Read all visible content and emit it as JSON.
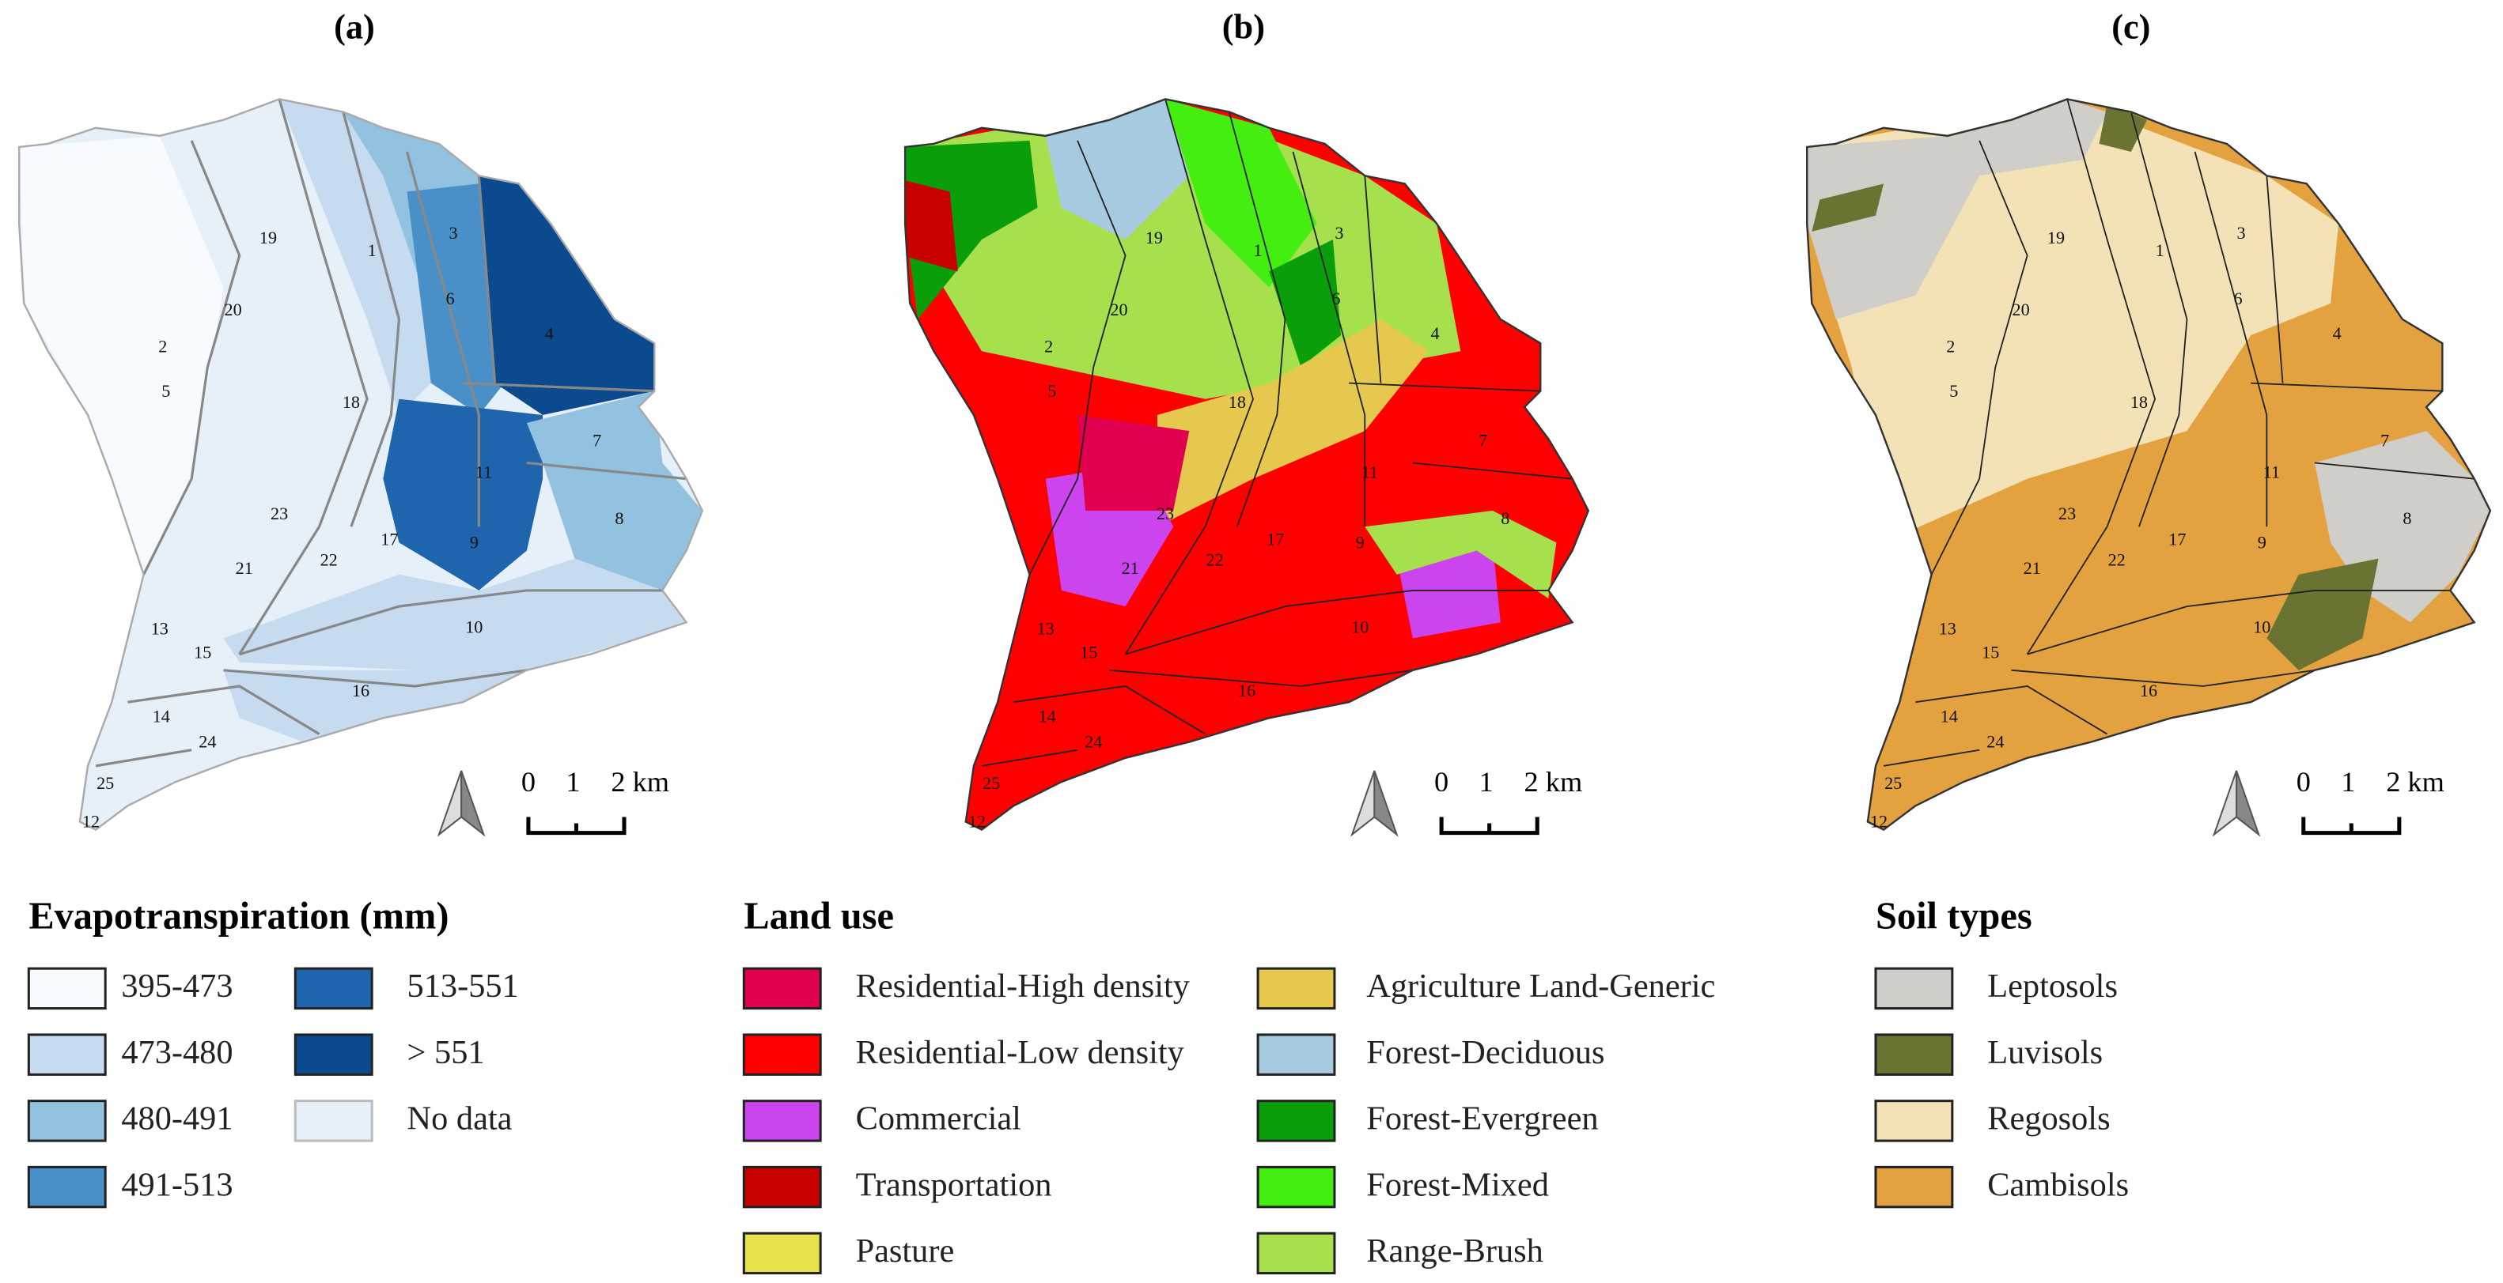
{
  "panels": [
    {
      "title": "(a)",
      "subbasin_labels": [
        "19",
        "1",
        "3",
        "6",
        "20",
        "2",
        "4",
        "5",
        "18",
        "7",
        "11",
        "23",
        "8",
        "9",
        "17",
        "22",
        "21",
        "13",
        "10",
        "15",
        "16",
        "14",
        "24",
        "25",
        "12"
      ],
      "scale_labels": [
        "0",
        "1",
        "2 km"
      ],
      "legend": {
        "title": "Evapotranspiration (mm)",
        "items": [
          {
            "label": "395-473",
            "color": "#f7fbff"
          },
          {
            "label": "473-480",
            "color": "#c6dbef"
          },
          {
            "label": "480-491",
            "color": "#92c2e0"
          },
          {
            "label": "491-513",
            "color": "#4a90c8"
          },
          {
            "label": "513-551",
            "color": "#1f65ad"
          },
          {
            "label": "> 551",
            "color": "#0b4a8f"
          },
          {
            "label": "No data",
            "color": "#e6f0f8"
          }
        ]
      }
    },
    {
      "title": "(b)",
      "subbasin_labels": [
        "19",
        "1",
        "3",
        "6",
        "20",
        "2",
        "4",
        "5",
        "18",
        "7",
        "11",
        "23",
        "8",
        "9",
        "17",
        "22",
        "21",
        "13",
        "10",
        "15",
        "16",
        "14",
        "24",
        "25",
        "12"
      ],
      "scale_labels": [
        "0",
        "1",
        "2 km"
      ],
      "legend": {
        "title": "Land use",
        "items": [
          {
            "label": "Residential-High density",
            "color": "#e0004f"
          },
          {
            "label": "Residential-Low density",
            "color": "#ff0000"
          },
          {
            "label": "Commercial",
            "color": "#cc44ee"
          },
          {
            "label": "Transportation",
            "color": "#c80000"
          },
          {
            "label": "Pasture",
            "color": "#e6e04a"
          },
          {
            "label": "Agriculture Land-Generic",
            "color": "#e6c84e"
          },
          {
            "label": "Forest-Deciduous",
            "color": "#a6cbe0"
          },
          {
            "label": "Forest-Evergreen",
            "color": "#0a9e0a"
          },
          {
            "label": "Forest-Mixed",
            "color": "#44ee11"
          },
          {
            "label": "Range-Brush",
            "color": "#a6e04c"
          }
        ]
      }
    },
    {
      "title": "(c)",
      "subbasin_labels": [
        "19",
        "1",
        "3",
        "6",
        "20",
        "2",
        "4",
        "5",
        "18",
        "7",
        "11",
        "23",
        "8",
        "9",
        "17",
        "22",
        "21",
        "13",
        "10",
        "15",
        "16",
        "14",
        "24",
        "25",
        "12"
      ],
      "scale_labels": [
        "0",
        "1",
        "2 km"
      ],
      "legend": {
        "title": "Soil types",
        "items": [
          {
            "label": "Leptosols",
            "color": "#d0cec8"
          },
          {
            "label": "Luvisols",
            "color": "#6b7333"
          },
          {
            "label": "Regosols",
            "color": "#f2e2b6"
          },
          {
            "label": "Cambisols",
            "color": "#e3a23f"
          }
        ]
      }
    }
  ]
}
